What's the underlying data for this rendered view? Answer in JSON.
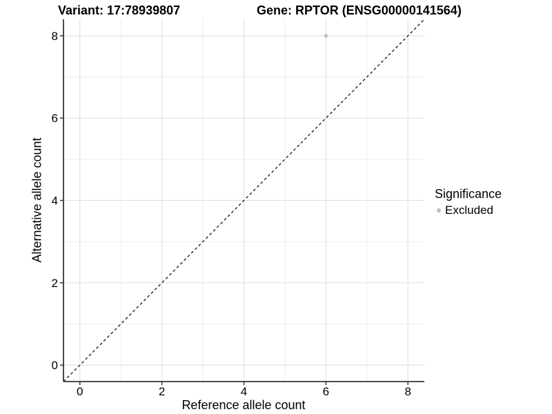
{
  "titles": {
    "variant": "Variant: 17:78939807",
    "gene": "Gene: RPTOR (ENSG00000141564)"
  },
  "chart_data": {
    "type": "scatter",
    "title_left": "Variant: 17:78939807",
    "title_right": "Gene: RPTOR (ENSG00000141564)",
    "xlabel": "Reference allele count",
    "ylabel": "Alternative allele count",
    "xlim": [
      -0.4,
      8.4
    ],
    "ylim": [
      -0.4,
      8.4
    ],
    "x_ticks": [
      0,
      2,
      4,
      6,
      8
    ],
    "y_ticks": [
      0,
      2,
      4,
      6,
      8
    ],
    "grid": {
      "major": [
        0,
        2,
        4,
        6,
        8
      ],
      "minor": [
        1,
        3,
        5,
        7
      ]
    },
    "points": [
      {
        "x": 6,
        "y": 8,
        "series": "Excluded",
        "color": "#bebebe",
        "radius": 2.6
      }
    ],
    "reference_line": {
      "slope": 1,
      "intercept": 0,
      "style": "dashed",
      "color": "#000000"
    },
    "legend": {
      "title": "Significance",
      "position": "right",
      "items": [
        {
          "label": "Excluded",
          "color": "#bebebe",
          "marker": "circle"
        }
      ]
    },
    "style_colors": {
      "grid_major": "#e2e2e2",
      "grid_minor": "#ececec",
      "axis_line": "#333333",
      "tick_mark": "#333333",
      "background": "#ffffff"
    }
  }
}
